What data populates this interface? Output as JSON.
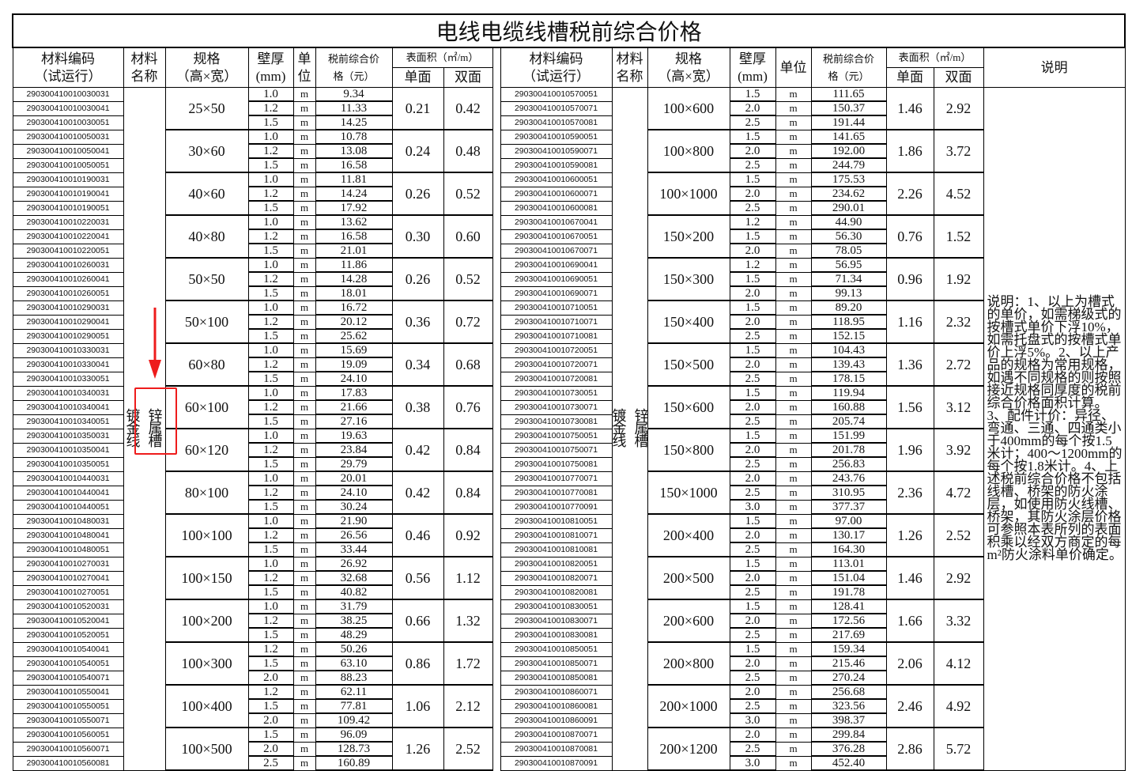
{
  "title": "电线电缆线槽税前综合价格",
  "headers": {
    "code": [
      "材料编码",
      "（试运行）"
    ],
    "name": [
      "材料",
      "名称"
    ],
    "spec": [
      "规格",
      "（高×宽）"
    ],
    "thickness": [
      "壁厚",
      "(mm)"
    ],
    "unit_left": [
      "单",
      "位"
    ],
    "unit_right": "单位",
    "price": [
      "税前综合价",
      "格（元）"
    ],
    "area": "表面积（㎡/m）",
    "single": "单面",
    "double": "双面",
    "note": "说明"
  },
  "material_name": "镀锌金属线槽",
  "note_text": "说明：1、以上为槽式的单价，如需梯级式的按槽式单价下浮10%，如需托盘式的按槽式单价上浮5%。2、以上产品的规格为常用规格，如遇不同规格的则按照接近规格同厚度的税前综合价格面积计算。3、配件计价：异径、弯通、三通、四通类小于400mm的每个按1.5米计；400～1200mm的每个按1.8米计。4、上述税前综合价格不包括线槽、桥架的防火涂层，如使用防火线槽、桥架，其防火涂层价格可参照本表所列的表面积乘以经双方商定的每m²防火涂料单价确定。",
  "highlight_color": "#ee1c1c",
  "left": [
    {
      "spec": "25×50",
      "single": "0.21",
      "double": "0.42",
      "rows": [
        [
          "290300410010030031",
          "1.0",
          "m",
          "9.34"
        ],
        [
          "290300410010030041",
          "1.2",
          "m",
          "11.33"
        ],
        [
          "290300410010030051",
          "1.5",
          "m",
          "14.25"
        ]
      ]
    },
    {
      "spec": "30×60",
      "single": "0.24",
      "double": "0.48",
      "rows": [
        [
          "290300410010050031",
          "1.0",
          "m",
          "10.78"
        ],
        [
          "290300410010050041",
          "1.2",
          "m",
          "13.08"
        ],
        [
          "290300410010050051",
          "1.5",
          "m",
          "16.58"
        ]
      ]
    },
    {
      "spec": "40×60",
      "single": "0.26",
      "double": "0.52",
      "rows": [
        [
          "290300410010190031",
          "1.0",
          "m",
          "11.81"
        ],
        [
          "290300410010190041",
          "1.2",
          "m",
          "14.24"
        ],
        [
          "290300410010190051",
          "1.5",
          "m",
          "17.92"
        ]
      ]
    },
    {
      "spec": "40×80",
      "single": "0.30",
      "double": "0.60",
      "rows": [
        [
          "290300410010220031",
          "1.0",
          "m",
          "13.62"
        ],
        [
          "290300410010220041",
          "1.2",
          "m",
          "16.58"
        ],
        [
          "290300410010220051",
          "1.5",
          "m",
          "21.01"
        ]
      ]
    },
    {
      "spec": "50×50",
      "single": "0.26",
      "double": "0.52",
      "rows": [
        [
          "290300410010260031",
          "1.0",
          "m",
          "11.86"
        ],
        [
          "290300410010260041",
          "1.2",
          "m",
          "14.28"
        ],
        [
          "290300410010260051",
          "1.5",
          "m",
          "18.01"
        ]
      ]
    },
    {
      "spec": "50×100",
      "single": "0.36",
      "double": "0.72",
      "rows": [
        [
          "290300410010290031",
          "1.0",
          "m",
          "16.72"
        ],
        [
          "290300410010290041",
          "1.2",
          "m",
          "20.12"
        ],
        [
          "290300410010290051",
          "1.5",
          "m",
          "25.62"
        ]
      ]
    },
    {
      "spec": "60×80",
      "single": "0.34",
      "double": "0.68",
      "rows": [
        [
          "290300410010330031",
          "1.0",
          "m",
          "15.69"
        ],
        [
          "290300410010330041",
          "1.2",
          "m",
          "19.09"
        ],
        [
          "290300410010330051",
          "1.5",
          "m",
          "24.10"
        ]
      ]
    },
    {
      "spec": "60×100",
      "single": "0.38",
      "double": "0.76",
      "rows": [
        [
          "290300410010340031",
          "1.0",
          "m",
          "17.83"
        ],
        [
          "290300410010340041",
          "1.2",
          "m",
          "21.66"
        ],
        [
          "290300410010340051",
          "1.5",
          "m",
          "27.16"
        ]
      ]
    },
    {
      "spec": "60×120",
      "single": "0.42",
      "double": "0.84",
      "rows": [
        [
          "290300410010350031",
          "1.0",
          "m",
          "19.63"
        ],
        [
          "290300410010350041",
          "1.2",
          "m",
          "23.84"
        ],
        [
          "290300410010350051",
          "1.5",
          "m",
          "29.79"
        ]
      ]
    },
    {
      "spec": "80×100",
      "single": "0.42",
      "double": "0.84",
      "rows": [
        [
          "290300410010440031",
          "1.0",
          "m",
          "20.01"
        ],
        [
          "290300410010440041",
          "1.2",
          "m",
          "24.10"
        ],
        [
          "290300410010440051",
          "1.5",
          "m",
          "30.24"
        ]
      ]
    },
    {
      "spec": "100×100",
      "single": "0.46",
      "double": "0.92",
      "rows": [
        [
          "290300410010480031",
          "1.0",
          "m",
          "21.90"
        ],
        [
          "290300410010480041",
          "1.2",
          "m",
          "26.56"
        ],
        [
          "290300410010480051",
          "1.5",
          "m",
          "33.44"
        ]
      ]
    },
    {
      "spec": "100×150",
      "single": "0.56",
      "double": "1.12",
      "rows": [
        [
          "290300410010270031",
          "1.0",
          "m",
          "26.92"
        ],
        [
          "290300410010270041",
          "1.2",
          "m",
          "32.68"
        ],
        [
          "290300410010270051",
          "1.5",
          "m",
          "40.82"
        ]
      ]
    },
    {
      "spec": "100×200",
      "single": "0.66",
      "double": "1.32",
      "rows": [
        [
          "290300410010520031",
          "1.0",
          "m",
          "31.79"
        ],
        [
          "290300410010520041",
          "1.2",
          "m",
          "38.25"
        ],
        [
          "290300410010520051",
          "1.5",
          "m",
          "48.29"
        ]
      ]
    },
    {
      "spec": "100×300",
      "single": "0.86",
      "double": "1.72",
      "rows": [
        [
          "290300410010540041",
          "1.2",
          "m",
          "50.26"
        ],
        [
          "290300410010540051",
          "1.5",
          "m",
          "63.10"
        ],
        [
          "290300410010540071",
          "2.0",
          "m",
          "88.23"
        ]
      ]
    },
    {
      "spec": "100×400",
      "single": "1.06",
      "double": "2.12",
      "rows": [
        [
          "290300410010550041",
          "1.2",
          "m",
          "62.11"
        ],
        [
          "290300410010550051",
          "1.5",
          "m",
          "77.81"
        ],
        [
          "290300410010550071",
          "2.0",
          "m",
          "109.42"
        ]
      ]
    },
    {
      "spec": "100×500",
      "single": "1.26",
      "double": "2.52",
      "rows": [
        [
          "290300410010560051",
          "1.5",
          "m",
          "96.09"
        ],
        [
          "290300410010560071",
          "2.0",
          "m",
          "128.73"
        ],
        [
          "290300410010560081",
          "2.5",
          "m",
          "160.89"
        ]
      ]
    }
  ],
  "right": [
    {
      "spec": "100×600",
      "single": "1.46",
      "double": "2.92",
      "rows": [
        [
          "290300410010570051",
          "1.5",
          "m",
          "111.65"
        ],
        [
          "290300410010570071",
          "2.0",
          "m",
          "150.37"
        ],
        [
          "290300410010570081",
          "2.5",
          "m",
          "191.44"
        ]
      ]
    },
    {
      "spec": "100×800",
      "single": "1.86",
      "double": "3.72",
      "rows": [
        [
          "290300410010590051",
          "1.5",
          "m",
          "141.65"
        ],
        [
          "290300410010590071",
          "2.0",
          "m",
          "192.00"
        ],
        [
          "290300410010590081",
          "2.5",
          "m",
          "244.79"
        ]
      ]
    },
    {
      "spec": "100×1000",
      "single": "2.26",
      "double": "4.52",
      "rows": [
        [
          "290300410010600051",
          "1.5",
          "m",
          "175.53"
        ],
        [
          "290300410010600071",
          "2.0",
          "m",
          "234.62"
        ],
        [
          "290300410010600081",
          "2.5",
          "m",
          "290.01"
        ]
      ]
    },
    {
      "spec": "150×200",
      "single": "0.76",
      "double": "1.52",
      "rows": [
        [
          "290300410010670041",
          "1.2",
          "m",
          "44.90"
        ],
        [
          "290300410010670051",
          "1.5",
          "m",
          "56.30"
        ],
        [
          "290300410010670071",
          "2.0",
          "m",
          "78.05"
        ]
      ]
    },
    {
      "spec": "150×300",
      "single": "0.96",
      "double": "1.92",
      "rows": [
        [
          "290300410010690041",
          "1.2",
          "m",
          "56.95"
        ],
        [
          "290300410010690051",
          "1.5",
          "m",
          "71.34"
        ],
        [
          "290300410010690071",
          "2.0",
          "m",
          "99.13"
        ]
      ]
    },
    {
      "spec": "150×400",
      "single": "1.16",
      "double": "2.32",
      "rows": [
        [
          "290300410010710051",
          "1.5",
          "m",
          "89.20"
        ],
        [
          "290300410010710071",
          "2.0",
          "m",
          "118.95"
        ],
        [
          "290300410010710081",
          "2.5",
          "m",
          "152.15"
        ]
      ]
    },
    {
      "spec": "150×500",
      "single": "1.36",
      "double": "2.72",
      "rows": [
        [
          "290300410010720051",
          "1.5",
          "m",
          "104.43"
        ],
        [
          "290300410010720071",
          "2.0",
          "m",
          "139.43"
        ],
        [
          "290300410010720081",
          "2.5",
          "m",
          "178.15"
        ]
      ]
    },
    {
      "spec": "150×600",
      "single": "1.56",
      "double": "3.12",
      "rows": [
        [
          "290300410010730051",
          "1.5",
          "m",
          "119.94"
        ],
        [
          "290300410010730071",
          "2.0",
          "m",
          "160.88"
        ],
        [
          "290300410010730081",
          "2.5",
          "m",
          "205.74"
        ]
      ]
    },
    {
      "spec": "150×800",
      "single": "1.96",
      "double": "3.92",
      "rows": [
        [
          "290300410010750051",
          "1.5",
          "m",
          "151.99"
        ],
        [
          "290300410010750071",
          "2.0",
          "m",
          "201.78"
        ],
        [
          "290300410010750081",
          "2.5",
          "m",
          "256.83"
        ]
      ]
    },
    {
      "spec": "150×1000",
      "single": "2.36",
      "double": "4.72",
      "rows": [
        [
          "290300410010770071",
          "2.0",
          "m",
          "243.76"
        ],
        [
          "290300410010770081",
          "2.5",
          "m",
          "310.95"
        ],
        [
          "290300410010770091",
          "3.0",
          "m",
          "377.37"
        ]
      ]
    },
    {
      "spec": "200×400",
      "single": "1.26",
      "double": "2.52",
      "rows": [
        [
          "290300410010810051",
          "1.5",
          "m",
          "97.00"
        ],
        [
          "290300410010810071",
          "2.0",
          "m",
          "130.17"
        ],
        [
          "290300410010810081",
          "2.5",
          "m",
          "164.30"
        ]
      ]
    },
    {
      "spec": "200×500",
      "single": "1.46",
      "double": "2.92",
      "rows": [
        [
          "290300410010820051",
          "1.5",
          "m",
          "113.01"
        ],
        [
          "290300410010820071",
          "2.0",
          "m",
          "151.04"
        ],
        [
          "290300410010820081",
          "2.5",
          "m",
          "191.78"
        ]
      ]
    },
    {
      "spec": "200×600",
      "single": "1.66",
      "double": "3.32",
      "rows": [
        [
          "290300410010830051",
          "1.5",
          "m",
          "128.41"
        ],
        [
          "290300410010830071",
          "2.0",
          "m",
          "172.56"
        ],
        [
          "290300410010830081",
          "2.5",
          "m",
          "217.69"
        ]
      ]
    },
    {
      "spec": "200×800",
      "single": "2.06",
      "double": "4.12",
      "rows": [
        [
          "290300410010850051",
          "1.5",
          "m",
          "159.34"
        ],
        [
          "290300410010850071",
          "2.0",
          "m",
          "215.46"
        ],
        [
          "290300410010850081",
          "2.5",
          "m",
          "270.24"
        ]
      ]
    },
    {
      "spec": "200×1000",
      "single": "2.46",
      "double": "4.92",
      "rows": [
        [
          "290300410010860071",
          "2.0",
          "m",
          "256.68"
        ],
        [
          "290300410010860081",
          "2.5",
          "m",
          "323.56"
        ],
        [
          "290300410010860091",
          "3.0",
          "m",
          "398.37"
        ]
      ]
    },
    {
      "spec": "200×1200",
      "single": "2.86",
      "double": "5.72",
      "rows": [
        [
          "290300410010870071",
          "2.0",
          "m",
          "299.84"
        ],
        [
          "290300410010870081",
          "2.5",
          "m",
          "376.28"
        ],
        [
          "290300410010870091",
          "3.0",
          "m",
          "452.40"
        ]
      ]
    }
  ]
}
